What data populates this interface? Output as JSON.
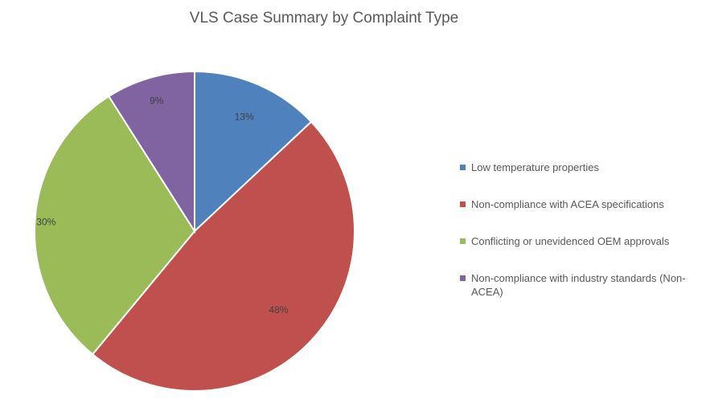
{
  "chart_data": {
    "type": "pie",
    "title": "VLS Case Summary by Complaint Type",
    "slices": [
      {
        "label": "Low temperature properties",
        "value": 13,
        "data_label": "13%",
        "color": "#4f81bd"
      },
      {
        "label": "Non-compliance with ACEA specifications",
        "value": 48,
        "data_label": "48%",
        "color": "#c0504d"
      },
      {
        "label": "Conflicting or unevidenced OEM approvals",
        "value": 30,
        "data_label": "30%",
        "color": "#9bbb59"
      },
      {
        "label": "Non-compliance with industry standards (Non-ACEA)",
        "value": 9,
        "data_label": "9%",
        "color": "#8064a2"
      }
    ],
    "legend_position": "right"
  },
  "legend": {
    "items": [
      {
        "label": "Low temperature properties"
      },
      {
        "label": "Non-compliance with ACEA specifications"
      },
      {
        "label": "Conflicting or unevidenced OEM approvals"
      },
      {
        "label": "Non-compliance with industry standards (Non-ACEA)"
      }
    ]
  }
}
